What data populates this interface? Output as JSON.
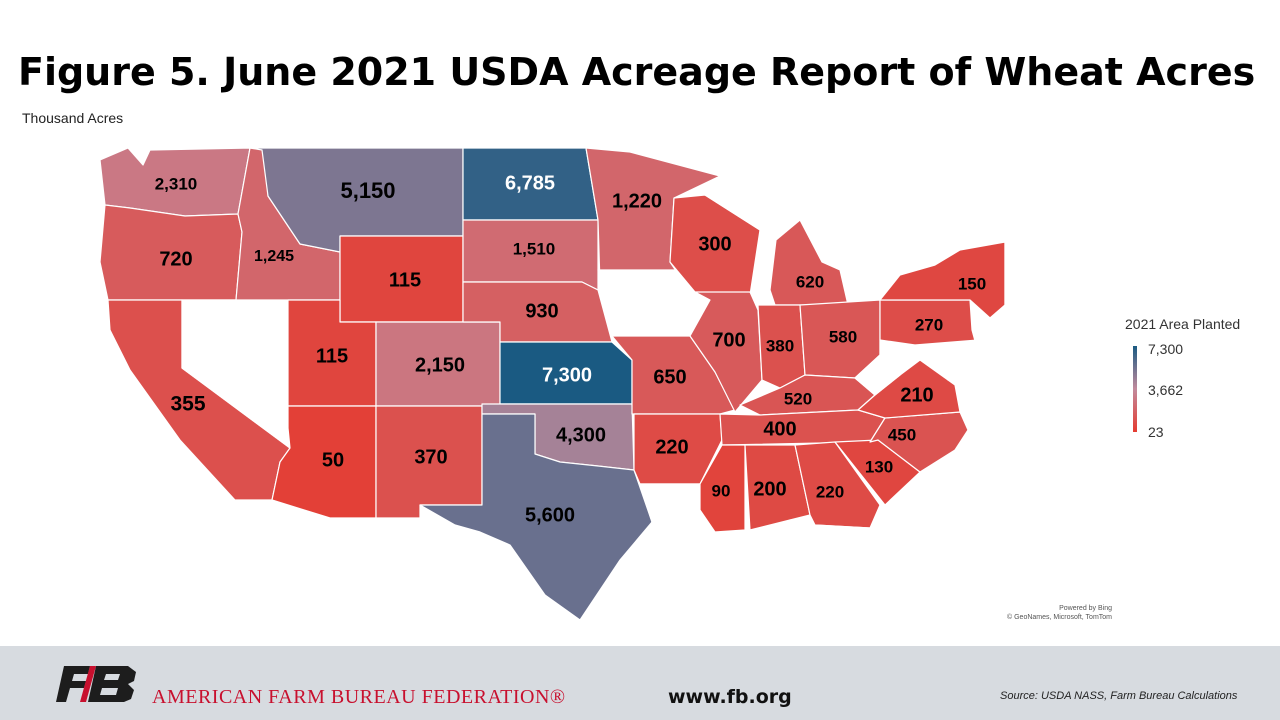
{
  "title": "Figure 5. June 2021 USDA Acreage Report of Wheat Acres",
  "subtitle": "Thousand Acres",
  "legend": {
    "title": "2021 Area Planted",
    "max": "7,300",
    "mid": "3,662",
    "min": "23"
  },
  "colors": {
    "low": "#e53b30",
    "mid": "#c28a9c",
    "high": "#1a5a82",
    "nodata": "#ffffff"
  },
  "bing": {
    "line1": "Powered by Bing",
    "line2": "© GeoNames, Microsoft, TomTom"
  },
  "footer": {
    "org": "AMERICAN FARM BUREAU FEDERATION®",
    "url": "www.fb.org",
    "source": "Source: USDA NASS, Farm Bureau Calculations",
    "logo": "AFBF FB logo"
  },
  "states": [
    {
      "state": "Washington",
      "label": "2,310",
      "value": 2310
    },
    {
      "state": "Oregon",
      "label": "720",
      "value": 720
    },
    {
      "state": "California",
      "label": "355",
      "value": 355
    },
    {
      "state": "Idaho",
      "label": "1,245",
      "value": 1245
    },
    {
      "state": "Montana",
      "label": "5,150",
      "value": 5150
    },
    {
      "state": "Wyoming",
      "label": "115",
      "value": 115
    },
    {
      "state": "Utah",
      "label": "115",
      "value": 115
    },
    {
      "state": "Arizona",
      "label": "50",
      "value": 50
    },
    {
      "state": "Colorado",
      "label": "2,150",
      "value": 2150
    },
    {
      "state": "New Mexico",
      "label": "370",
      "value": 370
    },
    {
      "state": "North Dakota",
      "label": "6,785",
      "value": 6785
    },
    {
      "state": "South Dakota",
      "label": "1,510",
      "value": 1510
    },
    {
      "state": "Nebraska",
      "label": "930",
      "value": 930
    },
    {
      "state": "Kansas",
      "label": "7,300",
      "value": 7300
    },
    {
      "state": "Oklahoma",
      "label": "4,300",
      "value": 4300
    },
    {
      "state": "Texas",
      "label": "5,600",
      "value": 5600
    },
    {
      "state": "Minnesota",
      "label": "1,220",
      "value": 1220
    },
    {
      "state": "Missouri",
      "label": "650",
      "value": 650
    },
    {
      "state": "Arkansas",
      "label": "220",
      "value": 220
    },
    {
      "state": "Wisconsin",
      "label": "300",
      "value": 300
    },
    {
      "state": "Illinois",
      "label": "700",
      "value": 700
    },
    {
      "state": "Michigan",
      "label": "620",
      "value": 620
    },
    {
      "state": "Indiana",
      "label": "380",
      "value": 380
    },
    {
      "state": "Ohio",
      "label": "580",
      "value": 580
    },
    {
      "state": "Kentucky",
      "label": "520",
      "value": 520
    },
    {
      "state": "Tennessee",
      "label": "400",
      "value": 400
    },
    {
      "state": "Mississippi",
      "label": "90",
      "value": 90
    },
    {
      "state": "Alabama",
      "label": "200",
      "value": 200
    },
    {
      "state": "Georgia",
      "label": "220",
      "value": 220
    },
    {
      "state": "South Carolina",
      "label": "130",
      "value": 130
    },
    {
      "state": "North Carolina",
      "label": "450",
      "value": 450
    },
    {
      "state": "Virginia",
      "label": "210",
      "value": 210
    },
    {
      "state": "Pennsylvania",
      "label": "270",
      "value": 270
    },
    {
      "state": "New York",
      "label": "150",
      "value": 150
    }
  ]
}
